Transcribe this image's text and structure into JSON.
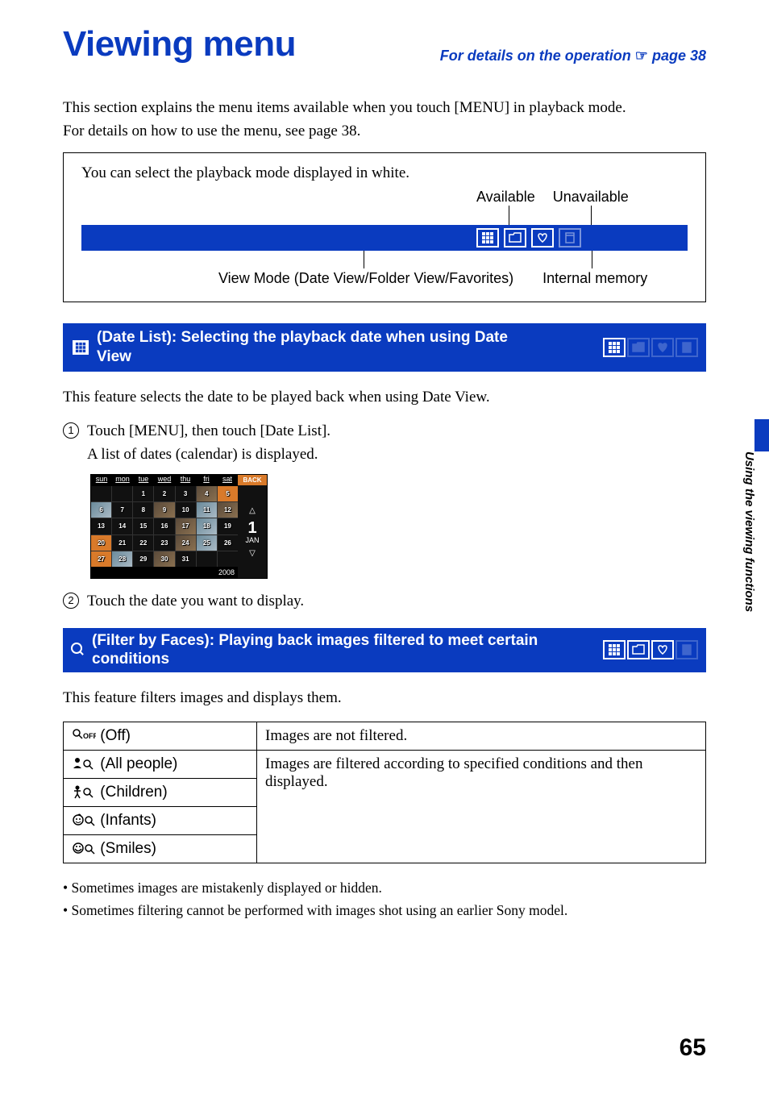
{
  "header": {
    "title": "Viewing menu",
    "operation_ref_prefix": "For details on the operation ",
    "operation_ref_page": "page 38",
    "hand_glyph": "☞"
  },
  "intro": {
    "line1": "This section explains the menu items available when you touch [MENU] in playback mode.",
    "line2": "For details on how to use the menu, see page 38."
  },
  "mode_box": {
    "top_text": "You can select the playback mode displayed in white.",
    "available_label": "Available",
    "unavailable_label": "Unavailable",
    "view_mode_caption": "View Mode (Date View/Folder View/Favorites)",
    "internal_memory_caption": "Internal memory"
  },
  "section1": {
    "title": " (Date List): Selecting the playback date when using Date View",
    "body": "This feature selects the date to be played back when using Date View.",
    "step1_line1": "Touch [MENU], then touch [Date List].",
    "step1_line2": "A list of dates (calendar) is displayed.",
    "step2": "Touch the date you want to display."
  },
  "calendar": {
    "days": [
      "sun",
      "mon",
      "tue",
      "wed",
      "thu",
      "fri",
      "sat"
    ],
    "back": "BACK",
    "current_day": "1",
    "current_month": "JAN",
    "year": "2008",
    "cells": [
      {
        "n": "",
        "t": ""
      },
      {
        "n": "",
        "t": ""
      },
      {
        "n": "1",
        "t": ""
      },
      {
        "n": "2",
        "t": ""
      },
      {
        "n": "3",
        "t": ""
      },
      {
        "n": "4",
        "t": "img"
      },
      {
        "n": "5",
        "t": "hl"
      },
      {
        "n": "6",
        "t": "img2"
      },
      {
        "n": "7",
        "t": ""
      },
      {
        "n": "8",
        "t": ""
      },
      {
        "n": "9",
        "t": "img"
      },
      {
        "n": "10",
        "t": ""
      },
      {
        "n": "11",
        "t": "img2"
      },
      {
        "n": "12",
        "t": "img"
      },
      {
        "n": "13",
        "t": ""
      },
      {
        "n": "14",
        "t": ""
      },
      {
        "n": "15",
        "t": ""
      },
      {
        "n": "16",
        "t": ""
      },
      {
        "n": "17",
        "t": "img"
      },
      {
        "n": "18",
        "t": "img2"
      },
      {
        "n": "19",
        "t": ""
      },
      {
        "n": "20",
        "t": "hl"
      },
      {
        "n": "21",
        "t": ""
      },
      {
        "n": "22",
        "t": ""
      },
      {
        "n": "23",
        "t": ""
      },
      {
        "n": "24",
        "t": "img"
      },
      {
        "n": "25",
        "t": "img2"
      },
      {
        "n": "26",
        "t": ""
      },
      {
        "n": "27",
        "t": "hl"
      },
      {
        "n": "28",
        "t": "img2"
      },
      {
        "n": "29",
        "t": ""
      },
      {
        "n": "30",
        "t": "img"
      },
      {
        "n": "31",
        "t": ""
      },
      {
        "n": "",
        "t": ""
      },
      {
        "n": "",
        "t": ""
      }
    ]
  },
  "section2": {
    "title": " (Filter by Faces): Playing back images filtered to meet certain conditions",
    "body": "This feature filters images and displays them."
  },
  "filter_table": {
    "rows": [
      {
        "label": " (Off)",
        "desc": "Images are not filtered."
      },
      {
        "label": " (All people)",
        "desc": "Images are filtered according to specified conditions and then displayed."
      },
      {
        "label": " (Children)",
        "desc": ""
      },
      {
        "label": " (Infants)",
        "desc": ""
      },
      {
        "label": " (Smiles)",
        "desc": ""
      }
    ],
    "merged_desc": "Images are filtered according to specified conditions and then displayed."
  },
  "notes": {
    "n1": "Sometimes images are mistakenly displayed or hidden.",
    "n2": "Sometimes filtering cannot be performed with images shot using an earlier Sony model."
  },
  "side_text": "Using the viewing functions",
  "page_number": "65",
  "colors": {
    "brand_blue": "#0a3bbf"
  }
}
